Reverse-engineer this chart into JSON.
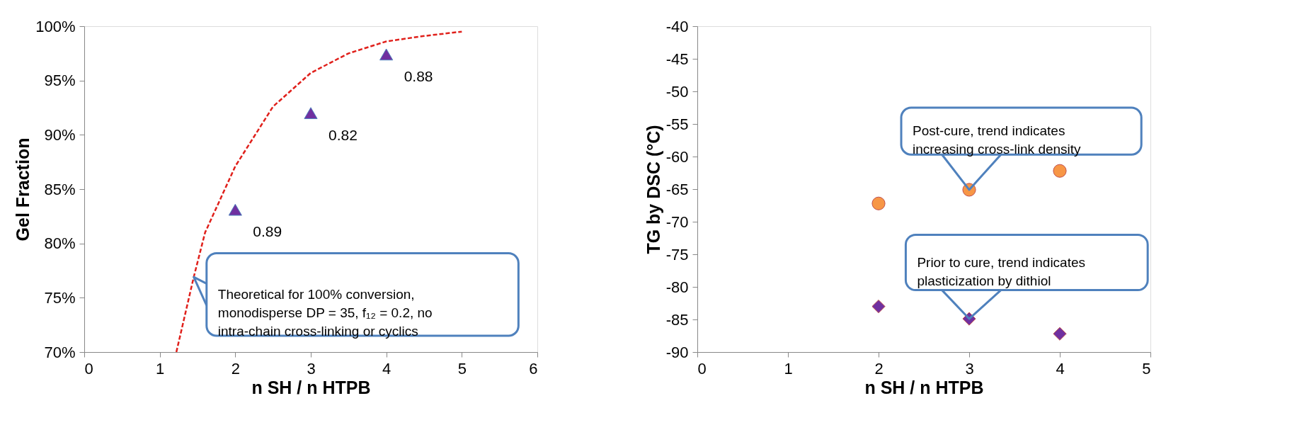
{
  "chart_data": [
    {
      "type": "scatter",
      "xlabel": "n SH / n HTPB",
      "ylabel": "Gel Fraction",
      "xlim": [
        0,
        6
      ],
      "xticks": [
        0,
        1,
        2,
        3,
        4,
        5,
        6
      ],
      "ylim": [
        70,
        100
      ],
      "yticks": [
        {
          "value": 70,
          "label": "70%"
        },
        {
          "value": 75,
          "label": "75%"
        },
        {
          "value": 80,
          "label": "80%"
        },
        {
          "value": 85,
          "label": "85%"
        },
        {
          "value": 90,
          "label": "90%"
        },
        {
          "value": 95,
          "label": "95%"
        },
        {
          "value": 100,
          "label": "100%"
        }
      ],
      "grid": false,
      "series": [
        {
          "marker": "triangle",
          "color": "#7030a0",
          "x": [
            2,
            3,
            4
          ],
          "values": [
            83.1,
            92.0,
            97.4
          ]
        },
        {
          "type": "line",
          "marker": "none",
          "line_style": "dashed",
          "color": "#e0201b",
          "x": [
            1.22,
            1.45,
            1.6,
            2,
            2.5,
            3,
            3.5,
            4,
            4.5,
            5
          ],
          "values": [
            70,
            76.9,
            81.0,
            87.1,
            92.6,
            95.7,
            97.5,
            98.6,
            99.1,
            99.5
          ]
        }
      ],
      "annotations": [
        {
          "text": "0.89",
          "x": 2,
          "y": 83.1
        },
        {
          "text": "0.82",
          "x": 3,
          "y": 92.0
        },
        {
          "text": "0.88",
          "x": 4,
          "y": 97.4
        },
        {
          "text": "Theoretical for 100% conversion,\nmonodisperse DP = 35, f₁₂ = 0.2, no\nintra-chain cross-linking or cyclics",
          "x": 1.45,
          "y": 76.9
        }
      ]
    },
    {
      "type": "scatter",
      "xlabel": "n SH / n HTPB",
      "ylabel": "TG by DSC (°C)",
      "xlim": [
        0,
        5
      ],
      "xticks": [
        0,
        1,
        2,
        3,
        4,
        5
      ],
      "ylim": [
        -90,
        -40
      ],
      "yticks": [
        -90,
        -85,
        -80,
        -75,
        -70,
        -65,
        -60,
        -55,
        -50,
        -45,
        -40
      ],
      "grid": false,
      "series": [
        {
          "marker": "circle",
          "color": "#f79646",
          "x": [
            2,
            3,
            4
          ],
          "values": [
            -67.2,
            -65.1,
            -62.2
          ]
        },
        {
          "marker": "diamond",
          "color": "#7030a0",
          "x": [
            2,
            3,
            4
          ],
          "values": [
            -83.0,
            -84.9,
            -87.2
          ]
        }
      ],
      "annotations": [
        {
          "text": "Post-cure, trend indicates\nincreasing cross-link density",
          "x": 3,
          "y": -65.1
        },
        {
          "text": "Prior to cure, trend indicates\nplasticization by dithiol",
          "x": 3,
          "y": -84.9
        }
      ]
    }
  ]
}
